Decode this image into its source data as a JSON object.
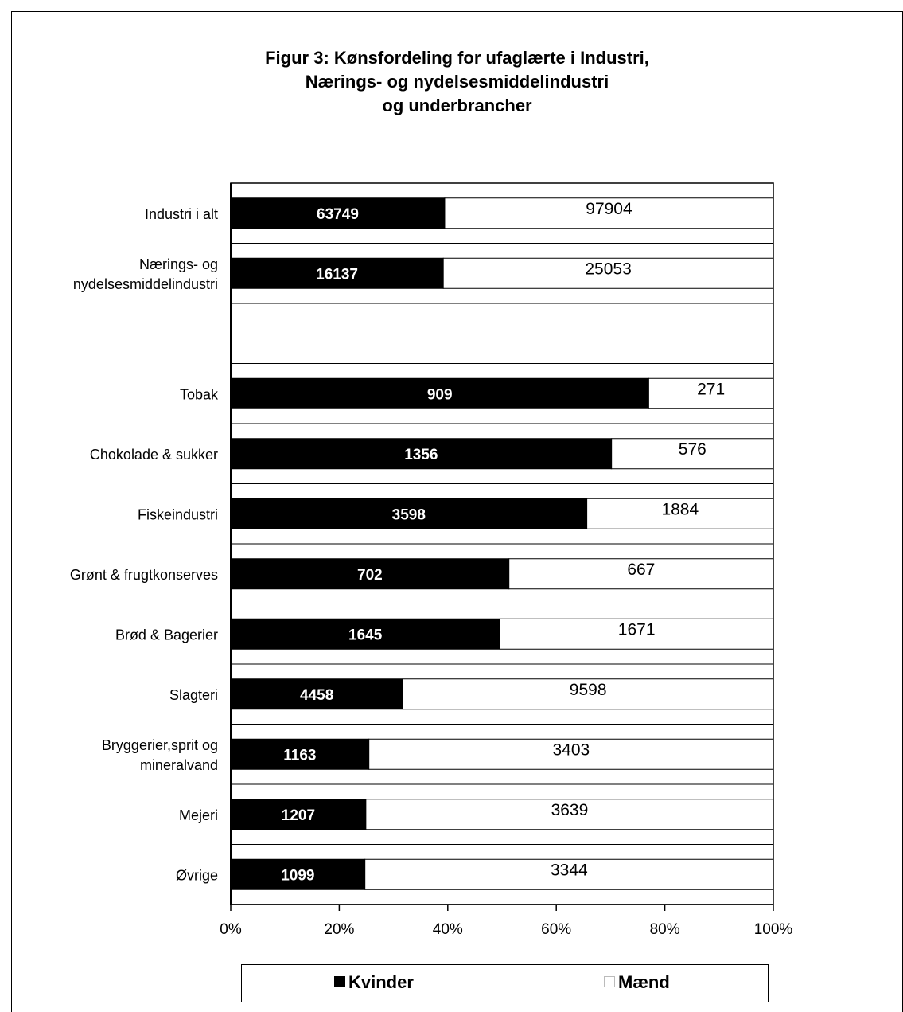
{
  "chart_data": {
    "type": "bar",
    "orientation": "horizontal",
    "stacking": "percent",
    "title": [
      "Figur 3: Kønsfordeling for ufaglærte i Industri,",
      "Nærings- og nydelsesmiddelindustri",
      "og underbrancher"
    ],
    "categories": [
      {
        "label": [
          "Industri i alt"
        ],
        "slot": 0
      },
      {
        "label": [
          "Nærings- og",
          "nydelsesmiddelindustri"
        ],
        "slot": 1
      },
      {
        "label": [
          "Tobak"
        ],
        "slot": 3
      },
      {
        "label": [
          "Chokolade & sukker"
        ],
        "slot": 4
      },
      {
        "label": [
          "Fiskeindustri"
        ],
        "slot": 5
      },
      {
        "label": [
          "Grønt & frugtkonserves"
        ],
        "slot": 6
      },
      {
        "label": [
          "Brød & Bagerier"
        ],
        "slot": 7
      },
      {
        "label": [
          "Slagteri"
        ],
        "slot": 8
      },
      {
        "label": [
          "Bryggerier,sprit og",
          "mineralvand"
        ],
        "slot": 9
      },
      {
        "label": [
          "Mejeri"
        ],
        "slot": 10
      },
      {
        "label": [
          "Øvrige"
        ],
        "slot": 11
      }
    ],
    "series": [
      {
        "name": "Kvinder",
        "color": "#000000",
        "label_color": "#ffffff",
        "values": [
          63749,
          16137,
          909,
          1356,
          3598,
          702,
          1645,
          4458,
          1163,
          1207,
          1099
        ]
      },
      {
        "name": "Mænd",
        "color": "#ffffff",
        "label_color": "#000000",
        "values": [
          97904,
          25053,
          271,
          576,
          1884,
          667,
          1671,
          9598,
          3403,
          3639,
          3344
        ]
      }
    ],
    "x_ticks": [
      "0%",
      "20%",
      "40%",
      "60%",
      "80%",
      "100%"
    ],
    "xlim": [
      0,
      100
    ],
    "legend_position": "bottom"
  },
  "legend": {
    "kvinder": "Kvinder",
    "maend": "Mænd"
  }
}
